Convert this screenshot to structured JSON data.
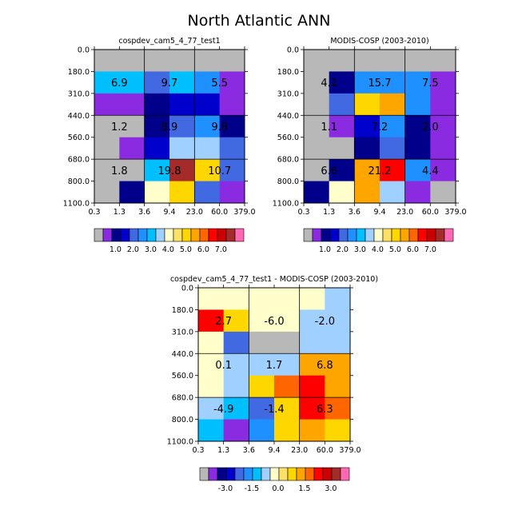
{
  "title": "North Atlantic ANN",
  "colors": {
    "ctrl_palette": [
      "#b8b8b8",
      "#8a2be2",
      "#00008b",
      "#0000cd",
      "#4169e1",
      "#1e90ff",
      "#00bfff",
      "#a0d0ff",
      "#ffffcc",
      "#ffe066",
      "#ffd700",
      "#ffa500",
      "#ff6600",
      "#ff0000",
      "#cc0000",
      "#a52a2a",
      "#ff69b4"
    ],
    "diff_palette": [
      "#b8b8b8",
      "#8a2be2",
      "#00008b",
      "#0000cd",
      "#4169e1",
      "#1e90ff",
      "#00bfff",
      "#a0d0ff",
      "#ffffcc",
      "#ffe066",
      "#ffd700",
      "#ffa500",
      "#ff6600",
      "#ff0000",
      "#cc0000",
      "#a52a2a",
      "#ff69b4"
    ]
  },
  "chart_data": [
    {
      "type": "heatmap",
      "id": "model",
      "title": "cospdev_cam5_4_77_test1",
      "x_ticks": [
        "0.3",
        "1.3",
        "3.6",
        "9.4",
        "23.0",
        "60.0",
        "379.0"
      ],
      "y_ticks": [
        "0.0",
        "180.0",
        "310.0",
        "440.0",
        "560.0",
        "680.0",
        "800.0",
        "1100.0"
      ],
      "rows": [
        [
          0,
          0,
          0,
          0,
          0,
          0
        ],
        [
          6,
          6,
          4,
          6,
          5,
          1
        ],
        [
          1,
          1,
          2,
          3,
          3,
          1
        ],
        [
          0,
          0,
          2,
          4,
          5,
          2
        ],
        [
          0,
          1,
          3,
          7,
          7,
          4
        ],
        [
          0,
          0,
          6,
          15,
          10,
          4
        ],
        [
          0,
          2,
          8,
          10,
          4,
          1
        ]
      ],
      "labels": [
        {
          "text": "6.9",
          "col": 1,
          "row": 1.5
        },
        {
          "text": "9.7",
          "col": 3,
          "row": 1.5
        },
        {
          "text": "5.5",
          "col": 5,
          "row": 1.5
        },
        {
          "text": "1.2",
          "col": 1,
          "row": 3.5
        },
        {
          "text": "8.9",
          "col": 3,
          "row": 3.5
        },
        {
          "text": "9.8",
          "col": 5,
          "row": 3.5
        },
        {
          "text": "1.8",
          "col": 1,
          "row": 5.5
        },
        {
          "text": "19.8",
          "col": 3,
          "row": 5.5
        },
        {
          "text": "10.7",
          "col": 5,
          "row": 5.5
        }
      ],
      "legend_labels": [
        "1.0",
        "2.0",
        "3.0",
        "4.0",
        "5.0",
        "6.0",
        "7.0"
      ]
    },
    {
      "type": "heatmap",
      "id": "obs",
      "title": "MODIS-COSP (2003-2010)",
      "x_ticks": [
        "0.3",
        "1.3",
        "3.6",
        "9.4",
        "23.0",
        "60.0",
        "379.0"
      ],
      "y_ticks": [
        "0.0",
        "180.0",
        "310.0",
        "440.0",
        "560.0",
        "680.0",
        "800.0",
        "1100.0"
      ],
      "rows": [
        [
          0,
          0,
          0,
          0,
          0,
          0
        ],
        [
          0,
          2,
          5,
          5,
          5,
          1
        ],
        [
          0,
          4,
          10,
          11,
          5,
          1
        ],
        [
          0,
          1,
          3,
          5,
          2,
          1
        ],
        [
          0,
          0,
          2,
          4,
          2,
          1
        ],
        [
          0,
          2,
          11,
          13,
          5,
          1
        ],
        [
          2,
          8,
          11,
          7,
          1,
          0
        ]
      ],
      "labels": [
        {
          "text": "4.2",
          "col": 1,
          "row": 1.5
        },
        {
          "text": "15.7",
          "col": 3,
          "row": 1.5
        },
        {
          "text": "7.5",
          "col": 5,
          "row": 1.5
        },
        {
          "text": "1.1",
          "col": 1,
          "row": 3.5
        },
        {
          "text": "7.2",
          "col": 3,
          "row": 3.5
        },
        {
          "text": "2.0",
          "col": 5,
          "row": 3.5
        },
        {
          "text": "6.6",
          "col": 1,
          "row": 5.5
        },
        {
          "text": "21.2",
          "col": 3,
          "row": 5.5
        },
        {
          "text": "4.4",
          "col": 5,
          "row": 5.5
        }
      ],
      "legend_labels": [
        "1.0",
        "2.0",
        "3.0",
        "4.0",
        "5.0",
        "6.0",
        "7.0"
      ]
    },
    {
      "type": "heatmap",
      "id": "diff",
      "title": "cospdev_cam5_4_77_test1 - MODIS-COSP (2003-2010)",
      "x_ticks": [
        "0.3",
        "1.3",
        "3.6",
        "9.4",
        "23.0",
        "60.0",
        "379.0"
      ],
      "y_ticks": [
        "0.0",
        "180.0",
        "310.0",
        "440.0",
        "560.0",
        "680.0",
        "800.0",
        "1100.0"
      ],
      "rows": [
        [
          8,
          8,
          8,
          8,
          8,
          7
        ],
        [
          13,
          10,
          8,
          8,
          7,
          7
        ],
        [
          8,
          4,
          0,
          0,
          7,
          7
        ],
        [
          8,
          7,
          7,
          7,
          11,
          11
        ],
        [
          8,
          7,
          10,
          12,
          13,
          11
        ],
        [
          7,
          6,
          4,
          10,
          13,
          12
        ],
        [
          6,
          1,
          5,
          10,
          11,
          10
        ]
      ],
      "labels": [
        {
          "text": "2.7",
          "col": 1,
          "row": 1.5
        },
        {
          "text": "-6.0",
          "col": 3,
          "row": 1.5
        },
        {
          "text": "-2.0",
          "col": 5,
          "row": 1.5
        },
        {
          "text": "0.1",
          "col": 1,
          "row": 3.5
        },
        {
          "text": "1.7",
          "col": 3,
          "row": 3.5
        },
        {
          "text": "6.8",
          "col": 5,
          "row": 3.5
        },
        {
          "text": "-4.9",
          "col": 1,
          "row": 5.5
        },
        {
          "text": "-1.4",
          "col": 3,
          "row": 5.5
        },
        {
          "text": "6.3",
          "col": 5,
          "row": 5.5
        }
      ],
      "legend_labels": [
        "-3.0",
        "-1.5",
        "0.0",
        "1.5",
        "3.0"
      ]
    }
  ]
}
